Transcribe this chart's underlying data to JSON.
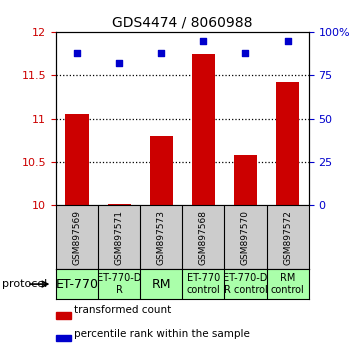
{
  "title": "GDS4474 / 8060988",
  "samples": [
    "GSM897569",
    "GSM897571",
    "GSM897573",
    "GSM897568",
    "GSM897570",
    "GSM897572"
  ],
  "bar_values": [
    11.05,
    10.02,
    10.8,
    11.75,
    10.58,
    11.42
  ],
  "percentile_values": [
    88,
    82,
    88,
    95,
    88,
    95
  ],
  "ylim_left": [
    10,
    12
  ],
  "ylim_right": [
    0,
    100
  ],
  "yticks_left": [
    10,
    10.5,
    11,
    11.5,
    12
  ],
  "yticks_right": [
    0,
    25,
    50,
    75,
    100
  ],
  "ytick_right_labels": [
    "0",
    "25",
    "50",
    "75",
    "100%"
  ],
  "bar_color": "#cc0000",
  "dot_color": "#0000cc",
  "protocol_labels": [
    "ET-770",
    "ET-770-D\nR",
    "RM",
    "ET-770\ncontrol",
    "ET-770-D\nR control",
    "RM\ncontrol"
  ],
  "protocol_fontsize": [
    9,
    7,
    9,
    7,
    7,
    7
  ],
  "protocol_bg": "#aaffaa",
  "sample_bg": "#cccccc",
  "legend_red_label": "transformed count",
  "legend_blue_label": "percentile rank within the sample",
  "protocol_text": "protocol"
}
